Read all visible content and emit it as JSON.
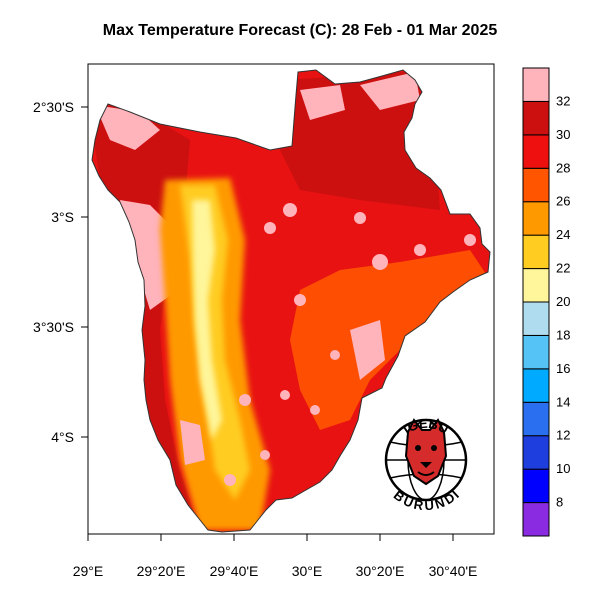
{
  "title": "Max Temperature Forecast (C): 28 Feb - 01 Mar 2025",
  "map": {
    "lon_ticks": [
      "29°E",
      "29°20'E",
      "29°40'E",
      "30°E",
      "30°20'E",
      "30°40'E"
    ],
    "lat_ticks": [
      "2°30'S",
      "3°S",
      "3°30'S",
      "4°S"
    ]
  },
  "colorbar": {
    "levels": [
      "8",
      "10",
      "12",
      "14",
      "16",
      "18",
      "20",
      "22",
      "24",
      "26",
      "28",
      "30",
      "32"
    ],
    "colors": [
      "#8a2be2",
      "#0000ff",
      "#1e3fdd",
      "#2a6ff0",
      "#00aaff",
      "#55c3f5",
      "#b0dcf0",
      "#fff59a",
      "#ffcc22",
      "#ff9900",
      "#ff5500",
      "#ee0f0f",
      "#cc0f0f",
      "#ffb3bb"
    ]
  },
  "logo": {
    "top_text": "IGEBU",
    "bottom_text": "BURUNDI",
    "icon": "leopard-head-icon"
  }
}
